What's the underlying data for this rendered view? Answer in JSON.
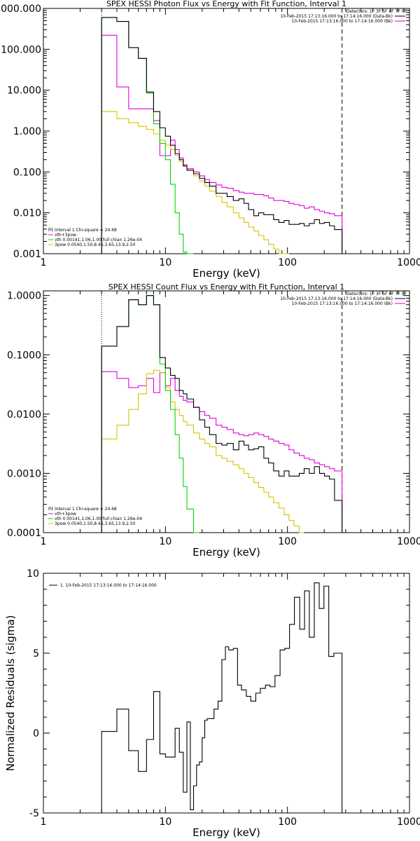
{
  "chart_data": [
    {
      "type": "line",
      "title": "SPEX HESSI Photon Flux vs Energy with Fit Function, Interval 1",
      "xlabel": "Energy (keV)",
      "ylabel": "",
      "xscale": "log",
      "yscale": "log",
      "xlim": [
        1,
        1000
      ],
      "ylim": [
        0.001,
        1000
      ],
      "x_tick_labels": [
        "1",
        "10",
        "100",
        "1000"
      ],
      "y_tick_labels": [
        "0.001",
        "0.010",
        "0.100",
        "1.000",
        "10.000",
        "100.000",
        "1000.000"
      ],
      "marker_lines": [
        3,
        280
      ],
      "legend_right": [
        "Detectors: 1F 3F 5F 6F 7F 9F",
        "10-Feb-2015 17:13:16.000 to 17:14:16.000 (Data-Bk)",
        "10-Feb-2015 17:13:16.000 to 17:14:16.000 (Bk)"
      ],
      "legend_left": [
        "Fit Interval 1    Chi-square = 24.68",
        "vth+3pow",
        "vth 0.00141,1.06,1.00  full chian 1.26e-04",
        "3pow 0.0540,1.50,8.45,3.65,13.9,2.50"
      ],
      "edges": [
        3,
        4,
        5,
        6,
        7,
        8,
        9,
        10,
        11,
        12,
        13,
        14,
        15,
        17,
        19,
        21,
        23,
        26,
        29,
        32,
        36,
        40,
        44,
        48,
        53,
        58,
        64,
        70,
        77,
        85,
        94,
        103,
        113,
        125,
        137,
        151,
        166,
        183,
        201,
        221,
        243,
        280
      ],
      "series": [
        {
          "name": "10-Feb-2015 17:13:16.000 to 17:14:16.000 (Data-Bk)",
          "color": "#000000",
          "values": [
            600,
            480,
            110,
            60,
            9.0,
            3.0,
            1.2,
            0.75,
            0.45,
            0.28,
            0.2,
            0.14,
            0.11,
            0.09,
            0.07,
            0.055,
            0.045,
            0.03,
            0.03,
            0.025,
            0.02,
            0.022,
            0.017,
            0.012,
            0.0085,
            0.01,
            0.009,
            0.009,
            0.0068,
            0.0058,
            0.0065,
            0.0052,
            0.0052,
            0.0055,
            0.0048,
            0.0055,
            0.0068,
            0.0055,
            0.0058,
            0.0048,
            0.0039
          ]
        },
        {
          "name": "10-Feb-2015 17:13:16.000 to 17:14:16.000 (Bk)",
          "color": "#e000e0",
          "values": [
            220,
            12,
            3.5,
            3.5,
            3.5,
            1.8,
            0.25,
            0.25,
            0.6,
            0.35,
            0.22,
            0.15,
            0.12,
            0.1,
            0.08,
            0.065,
            0.055,
            0.048,
            0.042,
            0.04,
            0.035,
            0.032,
            0.03,
            0.03,
            0.028,
            0.028,
            0.026,
            0.023,
            0.02,
            0.02,
            0.019,
            0.017,
            0.016,
            0.015,
            0.013,
            0.014,
            0.012,
            0.011,
            0.01,
            0.0095,
            0.0085
          ]
        },
        {
          "name": "vth",
          "color": "#00d800",
          "values": [
            600,
            480,
            110,
            60,
            8.5,
            1.5,
            0.5,
            0.2,
            0.05,
            0.01,
            0.003,
            0.0011,
            0.0002
          ]
        },
        {
          "name": "3pow",
          "color": "#d8c400",
          "values": [
            3.0,
            2.0,
            1.6,
            1.3,
            1.1,
            0.85,
            0.6,
            0.45,
            0.35,
            0.25,
            0.18,
            0.14,
            0.11,
            0.08,
            0.06,
            0.045,
            0.034,
            0.025,
            0.018,
            0.014,
            0.01,
            0.0075,
            0.0058,
            0.0045,
            0.0036,
            0.0028,
            0.0022,
            0.0017,
            0.0013,
            0.001,
            0.0008
          ]
        }
      ]
    },
    {
      "type": "line",
      "title": "SPEX HESSI Count Flux vs Energy with Fit Function, Interval 1",
      "xlabel": "Energy (keV)",
      "ylabel": "",
      "xscale": "log",
      "yscale": "log",
      "xlim": [
        1,
        1000
      ],
      "ylim": [
        0.0001,
        1.2
      ],
      "x_tick_labels": [
        "1",
        "10",
        "100",
        "1000"
      ],
      "y_tick_labels": [
        "0.0001",
        "0.0010",
        "0.0100",
        "0.1000",
        "1.0000"
      ],
      "marker_lines": [
        3,
        280
      ],
      "legend_right": [
        "Detectors: 1F 3F 5F 6F 7F 9F",
        "10-Feb-2015 17:13:16.000 to 17:14:16.000 (Data-Bk)",
        "10-Feb-2015 17:13:16.000 to 17:14:16.000 (Bk)"
      ],
      "legend_left": [
        "Fit Interval 1    Chi-square = 24.68",
        "vth+3pow",
        "vth 0.00141,1.06,1.00  full chian 1.26e-04",
        "3pow 0.0540,1.50,8.45,3.65,13.9,2.50"
      ],
      "edges": [
        3,
        4,
        5,
        6,
        7,
        8,
        9,
        10,
        11,
        12,
        13,
        14,
        15,
        17,
        19,
        21,
        23,
        26,
        29,
        32,
        36,
        40,
        44,
        48,
        53,
        58,
        64,
        70,
        77,
        85,
        94,
        103,
        113,
        125,
        137,
        151,
        166,
        183,
        201,
        221,
        243,
        280
      ],
      "series": [
        {
          "name": "10-Feb-2015 17:13:16.000 to 17:14:16.000 (Data-Bk)",
          "color": "#000000",
          "values": [
            0.14,
            0.3,
            0.85,
            0.7,
            1.0,
            0.7,
            0.09,
            0.06,
            0.045,
            0.04,
            0.025,
            0.022,
            0.018,
            0.013,
            0.008,
            0.006,
            0.0045,
            0.0032,
            0.003,
            0.0032,
            0.0025,
            0.0035,
            0.003,
            0.0025,
            0.0026,
            0.0028,
            0.0018,
            0.0015,
            0.0011,
            0.0009,
            0.0011,
            0.0009,
            0.0009,
            0.001,
            0.0012,
            0.001,
            0.0013,
            0.001,
            0.0009,
            0.0008,
            0.00035
          ]
        },
        {
          "name": "10-Feb-2015 17:13:16.000 to 17:14:16.000 (Bk)",
          "color": "#e000e0",
          "values": [
            0.052,
            0.04,
            0.028,
            0.03,
            0.04,
            0.023,
            0.05,
            0.03,
            0.04,
            0.025,
            0.02,
            0.017,
            0.016,
            0.013,
            0.011,
            0.0095,
            0.0085,
            0.0065,
            0.006,
            0.0055,
            0.0048,
            0.0045,
            0.0043,
            0.0045,
            0.0048,
            0.0045,
            0.0042,
            0.0038,
            0.0035,
            0.0032,
            0.003,
            0.0025,
            0.0022,
            0.002,
            0.0018,
            0.0017,
            0.0015,
            0.0014,
            0.0013,
            0.0012,
            0.0011
          ]
        },
        {
          "name": "vth",
          "color": "#00d800",
          "values": [
            0.14,
            0.3,
            0.85,
            0.7,
            1.0,
            0.7,
            0.07,
            0.025,
            0.012,
            0.0045,
            0.0018,
            0.0006,
            0.00025,
            8e-05
          ]
        },
        {
          "name": "3pow",
          "color": "#d8c400",
          "values": [
            0.0038,
            0.0065,
            0.012,
            0.022,
            0.048,
            0.055,
            0.05,
            0.028,
            0.016,
            0.012,
            0.0095,
            0.0075,
            0.0065,
            0.0048,
            0.0038,
            0.0032,
            0.0028,
            0.002,
            0.0018,
            0.0016,
            0.0014,
            0.0012,
            0.001,
            0.00085,
            0.0007,
            0.00058,
            0.00048,
            0.0004,
            0.00032,
            0.00026,
            0.0002,
            0.00016,
            0.00013,
            0.0001
          ]
        }
      ]
    },
    {
      "type": "line",
      "title": "",
      "xlabel": "Energy (keV)",
      "ylabel": "Normalized Residuals (sigma)",
      "xscale": "log",
      "yscale": "linear",
      "xlim": [
        1,
        1000
      ],
      "ylim": [
        -5,
        10
      ],
      "x_tick_labels": [
        "1",
        "10",
        "100",
        "1000"
      ],
      "y_tick_labels": [
        "-5",
        "0",
        "5",
        "10"
      ],
      "legend_left": [
        "1. 10-Feb-2015 17:13:16.000 to 17:14:16.000"
      ],
      "edges": [
        3,
        4,
        5,
        6,
        7,
        8,
        9,
        10,
        11,
        12,
        13,
        14,
        15,
        16,
        17,
        18,
        19,
        20,
        21,
        22,
        23,
        25,
        27,
        29,
        31,
        33,
        36,
        39,
        42,
        46,
        50,
        55,
        60,
        66,
        72,
        79,
        87,
        95,
        104,
        114,
        126,
        138,
        151,
        166,
        182,
        199,
        218,
        240,
        280
      ],
      "series": [
        {
          "name": "1. 10-Feb-2015 17:13:16.000 to 17:14:16.000",
          "color": "#000000",
          "values": [
            0.1,
            1.5,
            -1.1,
            -2.4,
            -0.4,
            2.6,
            -1.3,
            -1.5,
            -1.5,
            0.3,
            -1.2,
            -3.7,
            0.7,
            -4.8,
            -3.3,
            -2.0,
            -1.8,
            -0.3,
            0.8,
            0.9,
            0.9,
            1.5,
            2.0,
            4.6,
            5.4,
            5.2,
            5.3,
            3.0,
            2.7,
            2.3,
            2.0,
            2.5,
            2.8,
            3.0,
            2.9,
            3.6,
            5.2,
            5.3,
            6.8,
            8.5,
            6.5,
            8.9,
            6.0,
            9.4,
            7.8,
            9.2,
            4.8,
            5.0
          ]
        }
      ]
    }
  ]
}
